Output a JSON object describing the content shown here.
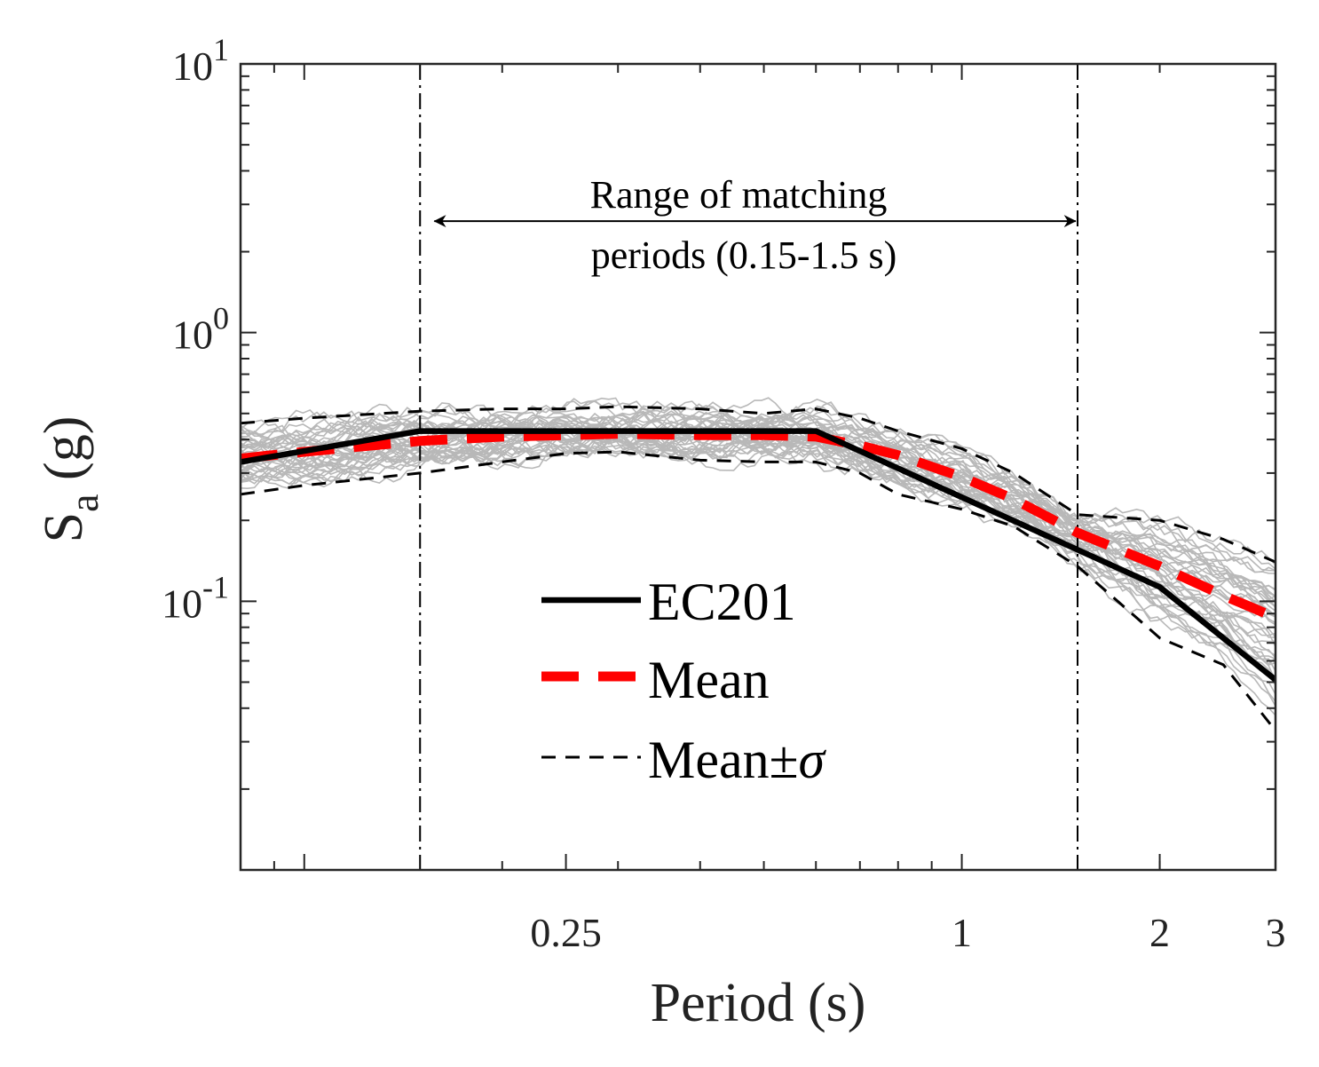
{
  "chart_data": {
    "type": "line",
    "title": "",
    "xlabel": "Period (s)",
    "ylabel": {
      "main": "S",
      "sub": "a",
      "unit": " (g)"
    },
    "xscale": "log",
    "yscale": "log",
    "xlim": [
      0.08,
      3.0
    ],
    "ylim": [
      0.01,
      10
    ],
    "xticks": [
      {
        "value": 0.25,
        "label": "0.25"
      },
      {
        "value": 1,
        "label": "1"
      },
      {
        "value": 2,
        "label": "2"
      },
      {
        "value": 3,
        "label": "3"
      }
    ],
    "yticks": [
      {
        "value": 10,
        "base": "10",
        "exp": "1"
      },
      {
        "value": 1,
        "base": "10",
        "exp": "0"
      },
      {
        "value": 0.1,
        "base": "10",
        "exp": "-1"
      }
    ],
    "vertical_lines": [
      0.15,
      1.5
    ],
    "annotation": {
      "line1": "Range of matching",
      "line2": "periods (0.15-1.5 s)",
      "arrow_from": 0.15,
      "arrow_to": 1.5,
      "arrow_y": 2.6
    },
    "series": [
      {
        "name": "EC201",
        "color": "#000000",
        "style": "solid",
        "x": [
          0.08,
          0.15,
          0.6,
          2.0,
          3.0
        ],
        "y": [
          0.33,
          0.43,
          0.43,
          0.113,
          0.051
        ]
      },
      {
        "name": "Mean",
        "color": "#ff0000",
        "style": "dashed",
        "x": [
          0.08,
          0.1,
          0.15,
          0.2,
          0.25,
          0.3,
          0.4,
          0.5,
          0.6,
          0.7,
          0.8,
          1.0,
          1.2,
          1.5,
          2.0,
          2.5,
          3.0
        ],
        "y": [
          0.34,
          0.36,
          0.395,
          0.41,
          0.415,
          0.42,
          0.415,
          0.415,
          0.41,
          0.38,
          0.35,
          0.29,
          0.24,
          0.18,
          0.135,
          0.105,
          0.087
        ]
      },
      {
        "name": "Mean+σ",
        "color": "#000000",
        "style": "thin-dashed",
        "x": [
          0.08,
          0.1,
          0.15,
          0.2,
          0.25,
          0.3,
          0.4,
          0.5,
          0.6,
          0.7,
          0.8,
          1.0,
          1.2,
          1.5,
          2.0,
          2.5,
          3.0
        ],
        "y": [
          0.46,
          0.48,
          0.51,
          0.52,
          0.52,
          0.53,
          0.52,
          0.5,
          0.52,
          0.48,
          0.43,
          0.37,
          0.3,
          0.21,
          0.2,
          0.17,
          0.14
        ]
      },
      {
        "name": "Mean-σ",
        "color": "#000000",
        "style": "thin-dashed",
        "x": [
          0.08,
          0.1,
          0.15,
          0.2,
          0.25,
          0.3,
          0.4,
          0.5,
          0.6,
          0.7,
          0.8,
          1.0,
          1.2,
          1.5,
          2.0,
          2.5,
          3.0
        ],
        "y": [
          0.25,
          0.27,
          0.3,
          0.33,
          0.355,
          0.36,
          0.335,
          0.33,
          0.33,
          0.3,
          0.25,
          0.22,
          0.19,
          0.135,
          0.073,
          0.058,
          0.033
        ]
      }
    ],
    "legend": {
      "placement": "center",
      "entries": [
        {
          "label": "EC201",
          "color": "#000000",
          "style": "solid"
        },
        {
          "label": "Mean",
          "color": "#ff0000",
          "style": "dashed"
        },
        {
          "label": "Mean±",
          "sigma": "σ",
          "color": "#000000",
          "style": "thin-dashed"
        }
      ]
    },
    "background_records": {
      "count": 40,
      "color": "#b8b8b8",
      "description": "individual ground motion spectra"
    }
  }
}
